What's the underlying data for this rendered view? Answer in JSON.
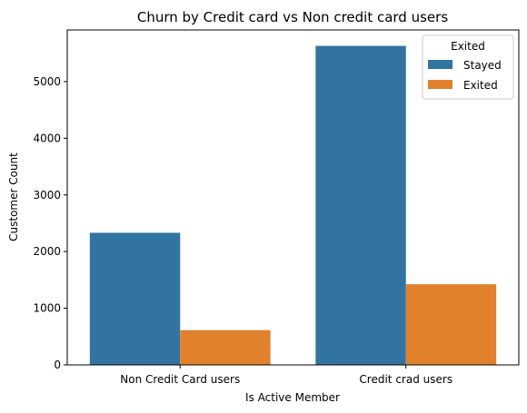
{
  "chart_data": {
    "type": "bar",
    "title": "Churn by Credit card  vs Non credit card users",
    "xlabel": "Is Active Member",
    "ylabel": "Customer Count",
    "categories": [
      "Non Credit Card users",
      "Credit crad users"
    ],
    "series": [
      {
        "name": "Stayed",
        "values": [
          2332,
          5631
        ],
        "color": "#3274a1"
      },
      {
        "name": "Exited",
        "values": [
          613,
          1424
        ],
        "color": "#e1812c"
      }
    ],
    "ylim": [
      0,
      5912
    ],
    "yticks": [
      0,
      1000,
      2000,
      3000,
      4000,
      5000
    ],
    "grid": false,
    "legend": {
      "title": "Exited",
      "placement": "top-right"
    }
  }
}
